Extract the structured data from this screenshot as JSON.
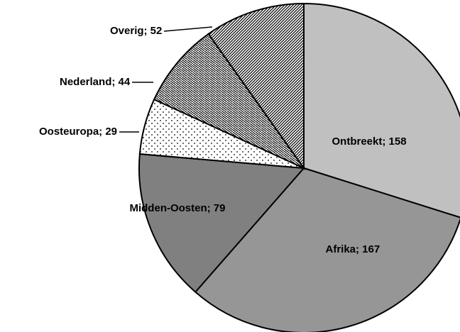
{
  "chart_data": {
    "type": "pie",
    "labels": [
      "Ontbreekt; 158",
      "Afrika; 167",
      "Midden-Oosten; 79",
      "Oosteuropa; 29",
      "Nederland; 44",
      "Overig; 52"
    ],
    "values": [
      158,
      167,
      79,
      29,
      44,
      52
    ],
    "colors": [
      "#c0c0c0",
      "#969696",
      "#808080",
      "url(#pat-dots)",
      "url(#pat-hatch)",
      "url(#pat-dense)"
    ]
  }
}
